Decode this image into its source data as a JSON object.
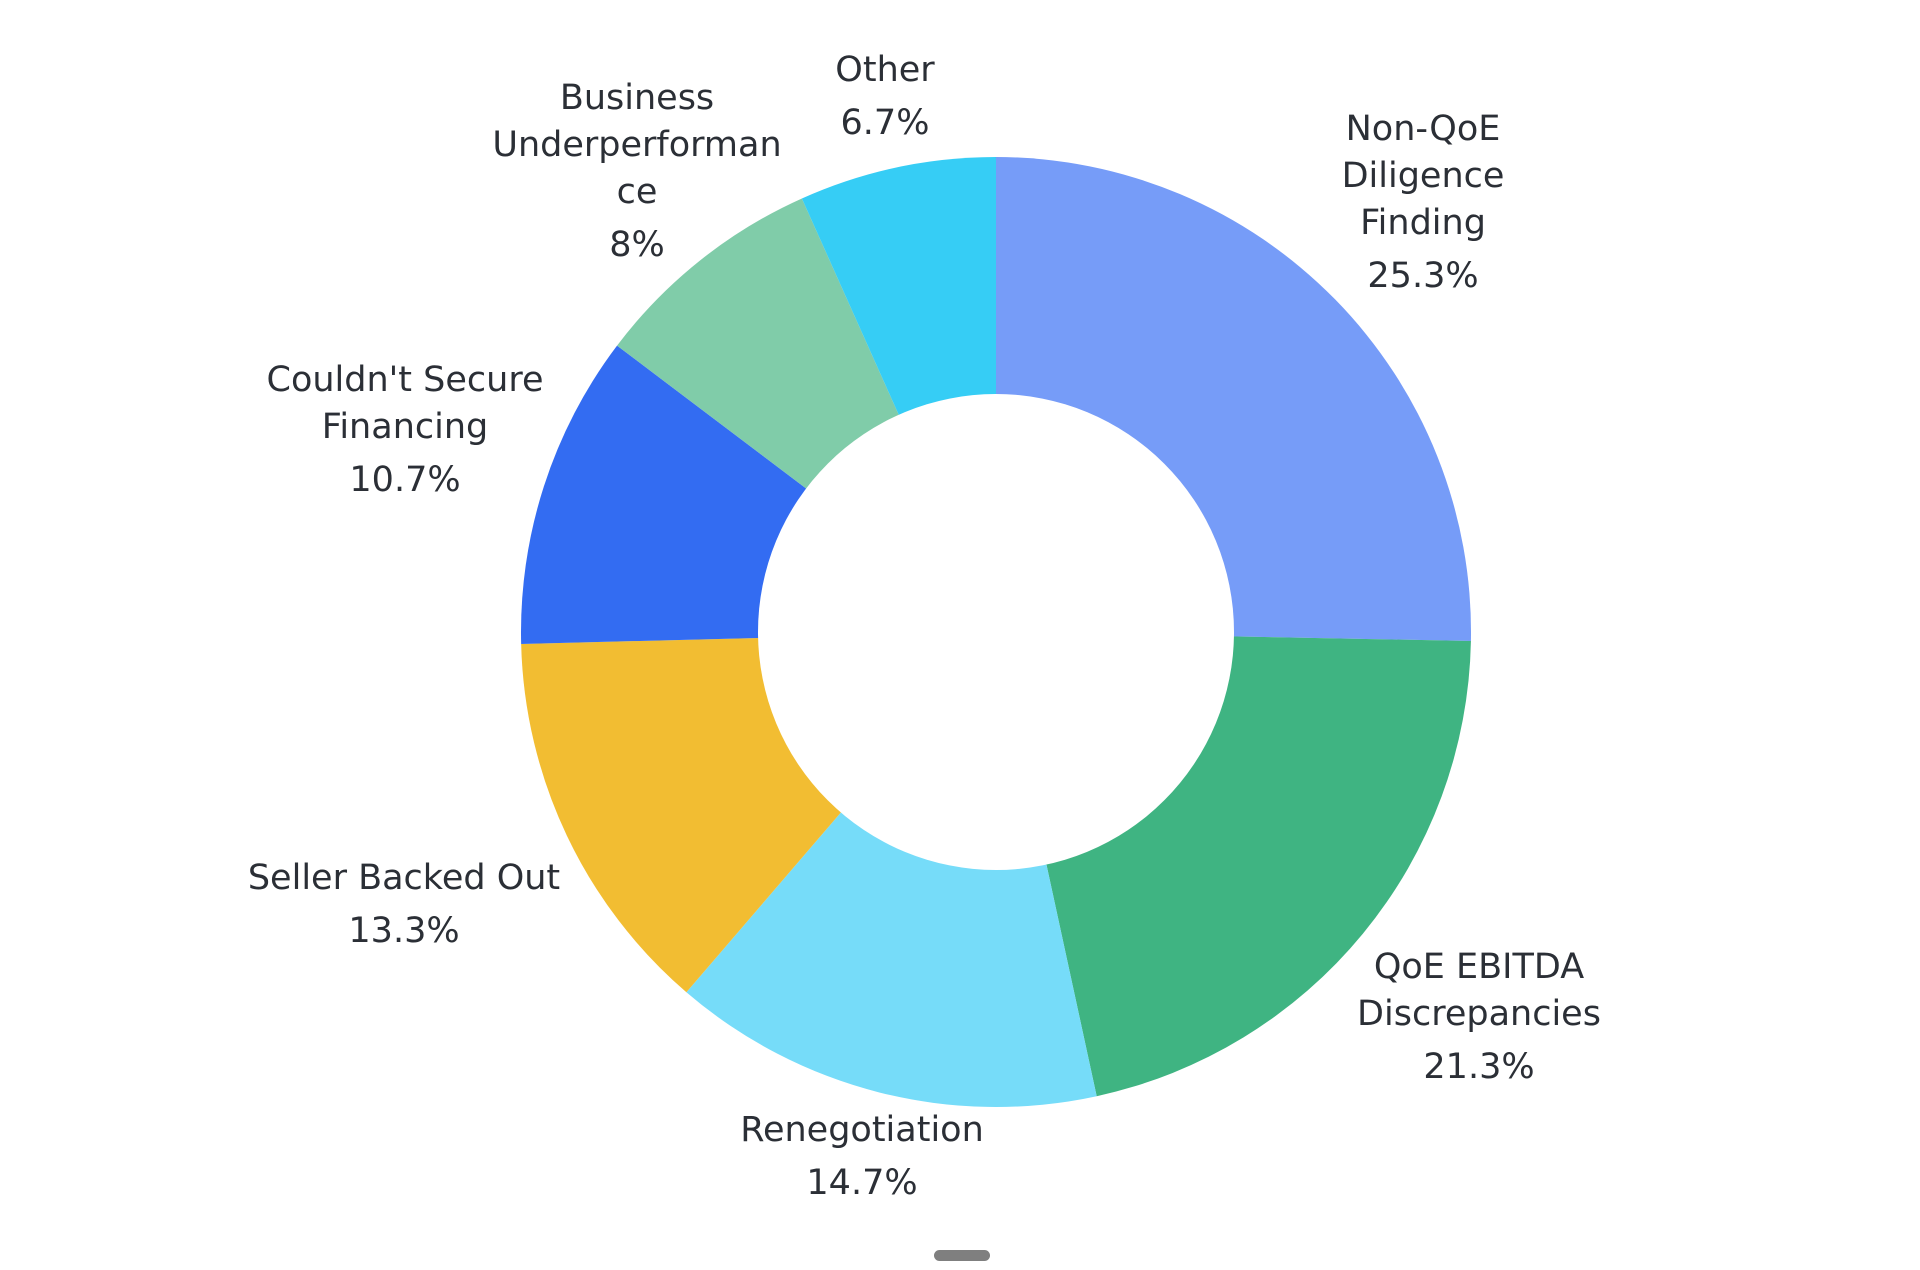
{
  "chart_data": {
    "type": "pie",
    "variant": "donut",
    "title": "",
    "slices": [
      {
        "label": [
          "Non-QoE",
          "Diligence",
          "Finding"
        ],
        "pct_text": "25.3%",
        "value": 25.3,
        "color": "#769cf8"
      },
      {
        "label": [
          "QoE EBITDA",
          "Discrepancies"
        ],
        "pct_text": "21.3%",
        "value": 21.3,
        "color": "#3fb482"
      },
      {
        "label": [
          "Renegotiation"
        ],
        "pct_text": "14.7%",
        "value": 14.7,
        "color": "#76dcf9"
      },
      {
        "label": [
          "Seller Backed Out"
        ],
        "pct_text": "13.3%",
        "value": 13.3,
        "color": "#f2bd32"
      },
      {
        "label": [
          "Couldn't Secure",
          "Financing"
        ],
        "pct_text": "10.7%",
        "value": 10.7,
        "color": "#336cf2"
      },
      {
        "label": [
          "Business",
          "Underperforman",
          "ce"
        ],
        "pct_text": "8%",
        "value": 8.0,
        "color": "#80cca9"
      },
      {
        "label": [
          "Other"
        ],
        "pct_text": "6.7%",
        "value": 6.7,
        "color": "#36cdf5"
      }
    ],
    "start_angle_deg": 0,
    "direction": "clockwise"
  }
}
